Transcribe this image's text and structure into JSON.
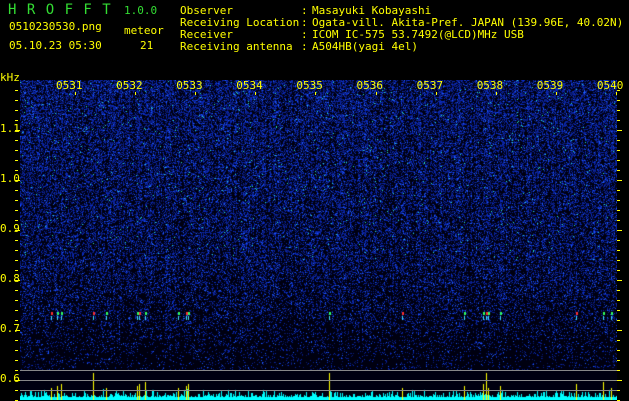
{
  "header": {
    "app_name": "H R O F F T",
    "version": "1.0.0",
    "filename": "0510230530.png",
    "datetime": "05.10.23 05:30",
    "meteor_label": "meteor",
    "meteor_count": "21"
  },
  "info": [
    {
      "label": "Observer",
      "value": "Masayuki Kobayashi"
    },
    {
      "label": "Receiving Location",
      "value": "Ogata-vill. Akita-Pref. JAPAN (139.96E, 40.02N)"
    },
    {
      "label": "Receiver",
      "value": "ICOM IC-575 53.7492(@LCD)MHz USB"
    },
    {
      "label": "Receiving antenna",
      "value": "A504HB(yagi 4el)"
    }
  ],
  "chart_data": {
    "type": "heatmap",
    "ylabel": "kHz",
    "y_ticks": [
      "1.1",
      "1.0",
      "0.9",
      "0.8",
      "0.7",
      "0.6"
    ],
    "ylim": [
      0.56,
      1.2
    ],
    "x_ticks": [
      "0531",
      "0532",
      "0533",
      "0534",
      "0535",
      "0536",
      "0537",
      "0538",
      "0539",
      "0540"
    ],
    "meteor_times": [
      "05:30:54",
      "05:31:00",
      "05:31:04",
      "05:31:36",
      "05:31:49",
      "05:32:20",
      "05:32:22",
      "05:32:28",
      "05:33:01",
      "05:33:09",
      "05:33:11",
      "05:35:32",
      "05:36:44",
      "05:37:46",
      "05:38:05",
      "05:38:08",
      "05:38:10",
      "05:38:22",
      "05:39:38",
      "05:40:05",
      "05:40:13"
    ],
    "colors": {
      "background": "#000000",
      "noise": "#1a2fd0",
      "histogram": "#00ffff",
      "meteor": "#ffff00",
      "text": "#ffff00"
    }
  }
}
